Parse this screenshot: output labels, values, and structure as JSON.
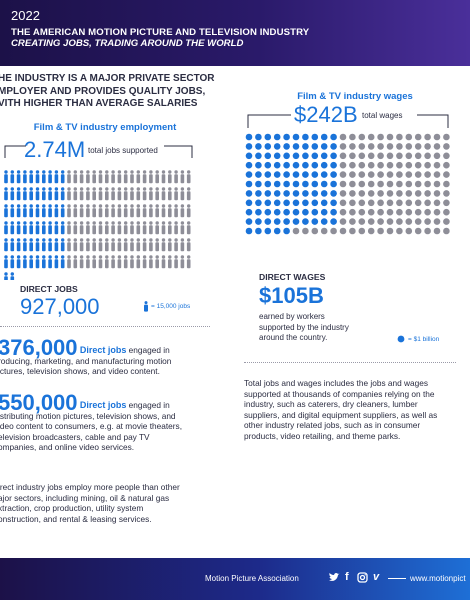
{
  "header": {
    "year": "2022",
    "title": "THE AMERICAN MOTION PICTURE AND TELEVISION INDUSTRY",
    "subtitle": "CREATING JOBS, TRADING AROUND THE WORLD"
  },
  "intro": {
    "line1": "HE INDUSTRY IS A MAJOR PRIVATE SECTOR",
    "line2": "MPLOYER AND PROVIDES QUALITY JOBS,",
    "line3": "VITH HIGHER THAN AVERAGE SALARIES"
  },
  "employment": {
    "label": "Film & TV industry employment",
    "total_value": "2.74M",
    "total_caption": "total jobs supported",
    "icons_total": 182,
    "icons_direct": 62,
    "direct_label": "DIRECT JOBS",
    "direct_value": "927,000",
    "legend_text": "= 15,000 jobs"
  },
  "wages": {
    "label": "Film & TV industry wages",
    "total_value": "$242B",
    "total_caption": "total wages",
    "dots_total": 242,
    "dots_direct": 105,
    "direct_label": "DIRECT WAGES",
    "direct_value": "$105B",
    "direct_caption_1": "earned by workers",
    "direct_caption_2": "supported by the industry",
    "direct_caption_3": "around the country.",
    "legend_text": "= $1 billion"
  },
  "left_paras": {
    "p1_number": "376,000",
    "p1_lead": "Direct jobs",
    "p1_text_a": " engaged in",
    "p1_line2": "roducing, marketing, and manufacturing motion",
    "p1_line3": "ictures, television shows, and video content.",
    "p2_number": "550,000",
    "p2_lead": "Direct jobs",
    "p2_text_a": " engaged in",
    "p2_line2": "istributing motion pictures, television shows, and",
    "p2_line3": "ideo content to consumers, e.g. at movie theaters,",
    "p2_line4": "elevision broadcasters, cable and pay TV",
    "p2_line5": "ompanies, and online video services.",
    "p3_line1": "irect industry jobs employ more people than other",
    "p3_line2": "ajor sectors, including mining, oil & natural gas",
    "p3_line3": "xtraction, crop production, utility system",
    "p3_line4": "onstruction, and rental & leasing services."
  },
  "right_para": {
    "line1": "Total jobs and wages includes the jobs and wages",
    "line2": "supported at thousands of companies relying on the",
    "line3": "industry, such as caterers, dry cleaners, lumber",
    "line4": "suppliers, and digital equipment suppliers, as well as",
    "line5": "other industry related jobs, such as in consumer",
    "line6": "products, video retailing, and theme parks."
  },
  "footer": {
    "org": "Motion Picture Association",
    "url": "www.motionpict"
  },
  "colors": {
    "blue": "#1a73d9",
    "gray": "#8e8e98",
    "navy": "#1c1148"
  }
}
